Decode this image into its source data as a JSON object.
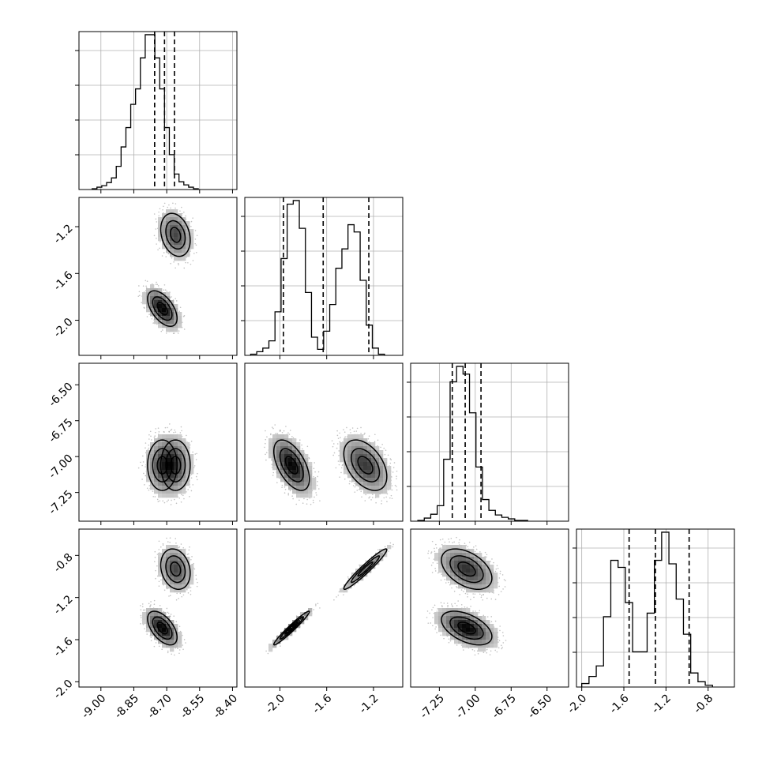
{
  "chart_data": {
    "type": "corner",
    "grid": true,
    "parameters": [
      {
        "xlim": [
          -9.1,
          -8.38
        ],
        "ticks": [
          -9.0,
          -8.85,
          -8.7,
          -8.55,
          -8.4
        ],
        "tick_labels": [
          "-9.00",
          "-8.85",
          "-8.70",
          "-8.55",
          "-8.40"
        ]
      },
      {
        "xlim": [
          -2.3,
          -0.95
        ],
        "ticks": [
          -2.0,
          -1.6,
          -1.2
        ],
        "tick_labels": [
          "-2.0",
          "-1.6",
          "-1.2"
        ]
      },
      {
        "xlim": [
          -7.45,
          -6.35
        ],
        "ticks": [
          -7.25,
          -7.0,
          -6.75,
          -6.5
        ],
        "tick_labels": [
          "-7.25",
          "-7.00",
          "-6.75",
          "-6.50"
        ]
      },
      {
        "xlim": [
          -2.05,
          -0.55
        ],
        "ticks": [
          -2.0,
          -1.6,
          -1.2,
          -0.8
        ],
        "tick_labels": [
          "-2.0",
          "-1.6",
          "-1.2",
          "-0.8"
        ]
      }
    ],
    "row_ylims": [
      null,
      [
        -2.3,
        -0.95
      ],
      [
        -7.45,
        -6.35
      ],
      [
        -2.05,
        -0.55
      ]
    ],
    "histograms": [
      {
        "bin_start": -9.04,
        "bin_width": 0.022,
        "counts": [
          1,
          3,
          5,
          9,
          15,
          30,
          55,
          80,
          110,
          130,
          170,
          200,
          200,
          170,
          130,
          80,
          45,
          20,
          10,
          6,
          3,
          1
        ],
        "quantiles": [
          -8.755,
          -8.71,
          -8.665
        ]
      },
      {
        "bin_start": -2.25,
        "bin_width": 0.052,
        "counts": [
          1,
          3,
          6,
          12,
          36,
          80,
          125,
          128,
          105,
          52,
          15,
          5,
          20,
          42,
          72,
          88,
          108,
          102,
          62,
          25,
          6,
          1
        ],
        "quantiles": [
          -1.97,
          -1.63,
          -1.24
        ]
      },
      {
        "bin_start": -7.4,
        "bin_width": 0.045,
        "counts": [
          1,
          4,
          9,
          20,
          80,
          180,
          200,
          190,
          140,
          70,
          28,
          14,
          8,
          5,
          3,
          1,
          1
        ],
        "quantiles": [
          -7.16,
          -7.07,
          -6.96
        ]
      },
      {
        "bin_start": -2.0,
        "bin_width": 0.069,
        "counts": [
          2,
          6,
          12,
          40,
          72,
          68,
          48,
          20,
          20,
          42,
          72,
          88,
          70,
          50,
          30,
          8,
          3,
          1
        ],
        "quantiles": [
          -1.55,
          -1.3,
          -0.98
        ]
      }
    ],
    "clusters": [
      {
        "mean": [
          -8.66,
          -1.27,
          -7.06,
          -0.93
        ],
        "sd": [
          0.042,
          0.115,
          0.11,
          0.12
        ],
        "corr": {
          "0-1": -0.25,
          "0-2": 0.0,
          "0-3": -0.2,
          "1-2": -0.45,
          "1-3": 0.96,
          "2-3": -0.45
        }
      },
      {
        "mean": [
          -8.72,
          -1.9,
          -7.06,
          -1.49
        ],
        "sd": [
          0.042,
          0.095,
          0.11,
          0.1
        ],
        "corr": {
          "0-1": -0.55,
          "0-2": 0.0,
          "0-3": -0.55,
          "1-2": -0.55,
          "1-3": 0.97,
          "2-3": -0.5
        }
      }
    ]
  }
}
